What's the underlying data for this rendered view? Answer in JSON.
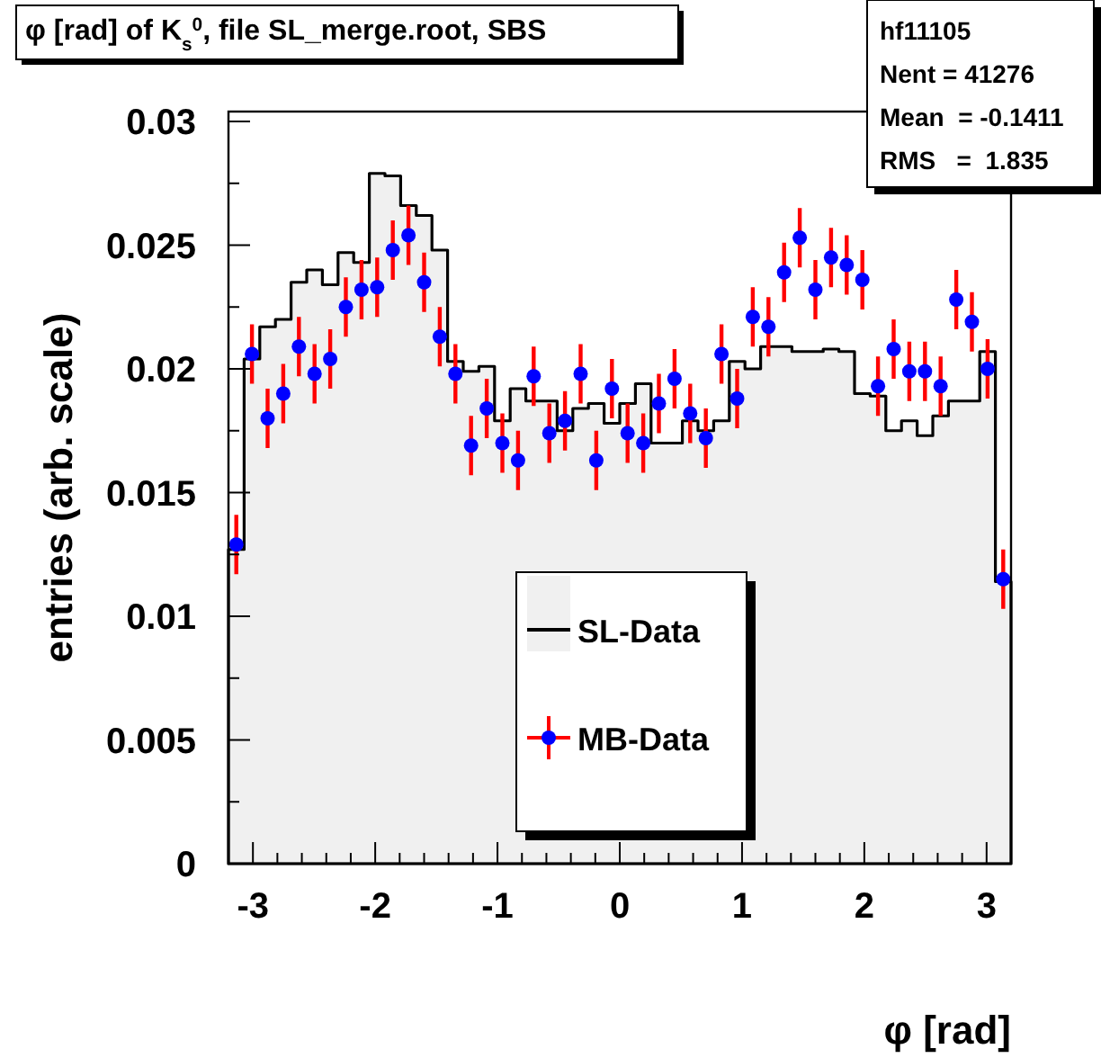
{
  "chart_data": {
    "type": "histogram",
    "title": "φ [rad] of K$_{s}$$^{0}$, file SL_merge.root, SBS",
    "xlabel": "φ [rad]",
    "ylabel": "entries (arb. scale)",
    "annotations": [
      "hf11105",
      "Nent = 41276",
      "Mean  = -0.1411",
      "RMS   =  1.835"
    ],
    "bins": [
      -3.2,
      -3.072,
      -2.944,
      -2.816,
      -2.688,
      -2.56,
      -2.432,
      -2.304,
      -2.176,
      -2.048,
      -1.92,
      -1.792,
      -1.664,
      -1.536,
      -1.408,
      -1.28,
      -1.152,
      -1.024,
      -0.896,
      -0.768,
      -0.64,
      -0.512,
      -0.384,
      -0.256,
      -0.128,
      0,
      0.128,
      0.256,
      0.384,
      0.512,
      0.64,
      0.768,
      0.896,
      1.024,
      1.152,
      1.28,
      1.408,
      1.536,
      1.664,
      1.792,
      1.92,
      2.048,
      2.176,
      2.304,
      2.432,
      2.56,
      2.688,
      2.816,
      2.944,
      3.072,
      3.2
    ],
    "series": [
      {
        "name": "SL-Data",
        "type": "histogram",
        "color": "#000000",
        "values": [
          0.0127,
          0.0204,
          0.0217,
          0.022,
          0.0235,
          0.024,
          0.0234,
          0.0247,
          0.0243,
          0.0279,
          0.0278,
          0.0266,
          0.0262,
          0.0248,
          0.0203,
          0.0199,
          0.0201,
          0.0179,
          0.0192,
          0.0187,
          0.0187,
          0.0175,
          0.0184,
          0.0186,
          0.0178,
          0.0186,
          0.0194,
          0.017,
          0.017,
          0.0179,
          0.0175,
          0.0179,
          0.0203,
          0.02,
          0.0209,
          0.0209,
          0.0207,
          0.0207,
          0.0208,
          0.0207,
          0.019,
          0.0189,
          0.0175,
          0.0179,
          0.0173,
          0.0181,
          0.0187,
          0.0187,
          0.0207,
          0.0114
        ]
      },
      {
        "name": "MB-Data",
        "type": "scatter",
        "color": "#0000ff",
        "marker": "circle",
        "x": [
          -3.136,
          -3.008,
          -2.88,
          -2.752,
          -2.624,
          -2.496,
          -2.368,
          -2.24,
          -2.112,
          -1.984,
          -1.856,
          -1.728,
          -1.6,
          -1.472,
          -1.344,
          -1.216,
          -1.088,
          -0.96,
          -0.832,
          -0.704,
          -0.576,
          -0.448,
          -0.32,
          -0.192,
          -0.064,
          0.064,
          0.192,
          0.32,
          0.448,
          0.576,
          0.704,
          0.832,
          0.96,
          1.088,
          1.216,
          1.344,
          1.472,
          1.6,
          1.728,
          1.856,
          1.984,
          2.112,
          2.24,
          2.368,
          2.496,
          2.624,
          2.752,
          2.88,
          3.008,
          3.136
        ],
        "values": [
          0.0129,
          0.0206,
          0.018,
          0.019,
          0.0209,
          0.0198,
          0.0204,
          0.0225,
          0.0232,
          0.0233,
          0.0248,
          0.0254,
          0.0235,
          0.0213,
          0.0198,
          0.0169,
          0.0184,
          0.017,
          0.0163,
          0.0197,
          0.0174,
          0.0179,
          0.0198,
          0.0163,
          0.0192,
          0.0174,
          0.017,
          0.0186,
          0.0196,
          0.0182,
          0.0172,
          0.0206,
          0.0188,
          0.0221,
          0.0217,
          0.0239,
          0.0253,
          0.0232,
          0.0245,
          0.0242,
          0.0236,
          0.0193,
          0.0208,
          0.0199,
          0.0199,
          0.0193,
          0.0228,
          0.0219,
          0.02,
          0.0115
        ],
        "errors": [
          0.0012,
          0.0012,
          0.0012,
          0.0012,
          0.0012,
          0.0012,
          0.0012,
          0.0012,
          0.0012,
          0.0012,
          0.0012,
          0.0012,
          0.0012,
          0.0012,
          0.0012,
          0.0012,
          0.0012,
          0.0012,
          0.0012,
          0.0012,
          0.0012,
          0.0012,
          0.0012,
          0.0012,
          0.0012,
          0.0012,
          0.0012,
          0.0012,
          0.0012,
          0.0012,
          0.0012,
          0.0012,
          0.0012,
          0.0012,
          0.0012,
          0.0012,
          0.0012,
          0.0012,
          0.0012,
          0.0012,
          0.0012,
          0.0012,
          0.0012,
          0.0012,
          0.0012,
          0.0012,
          0.0012,
          0.0012,
          0.0012,
          0.0012
        ]
      }
    ],
    "xlim": [
      -3.2,
      3.2
    ],
    "xticks": [
      -3,
      -2,
      -1,
      0,
      1,
      2,
      3
    ],
    "ylim": [
      0,
      0.0304
    ],
    "yticks": [
      0,
      0.005,
      0.01,
      0.015,
      0.02,
      0.025,
      0.03
    ],
    "grid": false,
    "legend": "bottom"
  }
}
